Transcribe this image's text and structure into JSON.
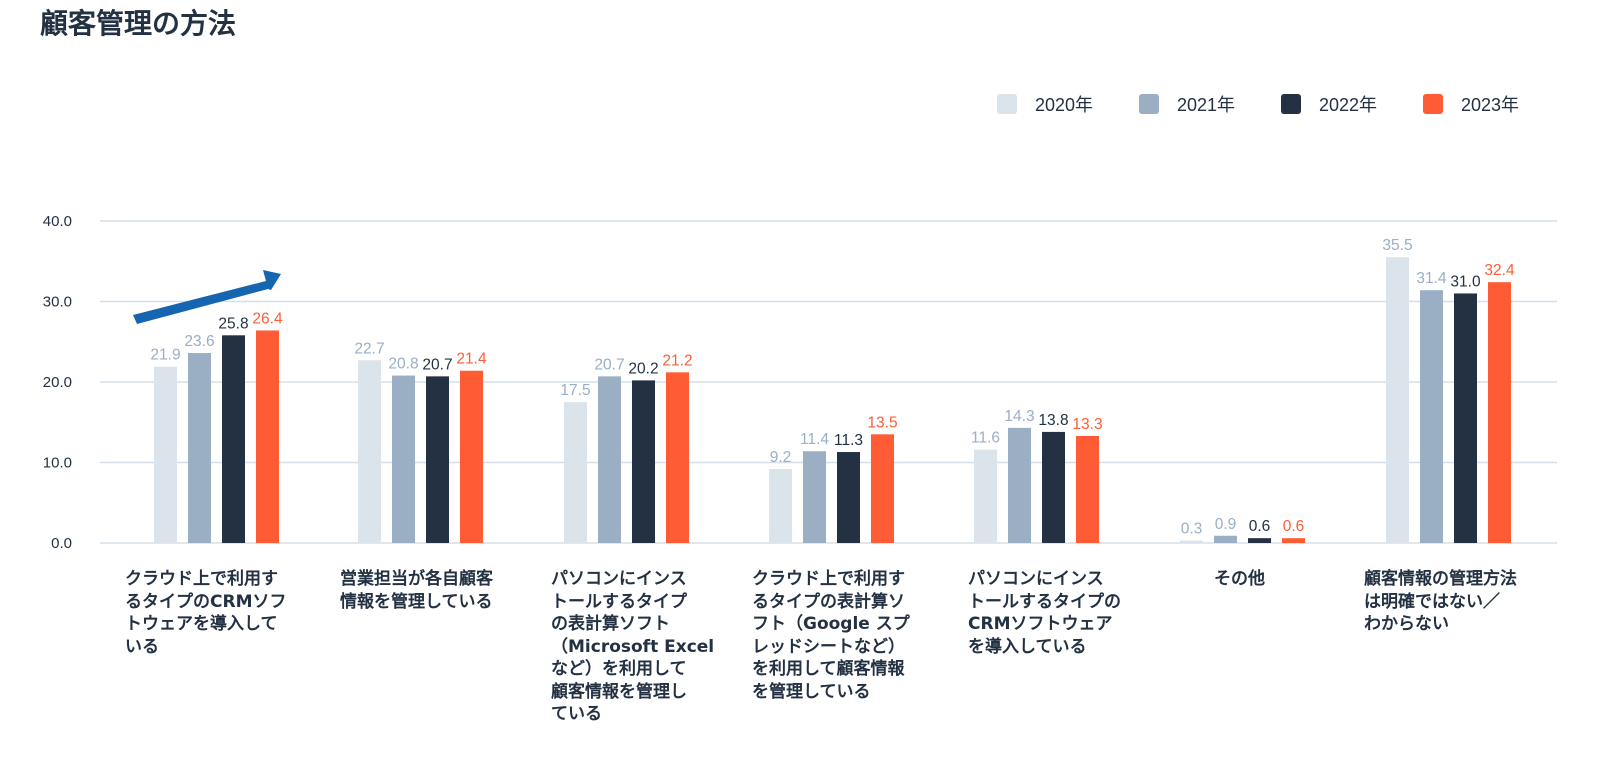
{
  "chart_data": {
    "type": "bar",
    "title": "顧客管理の方法",
    "xlabel": "",
    "ylabel": "",
    "ylim": [
      0,
      40
    ],
    "yticks": [
      "0.0",
      "10.0",
      "20.0",
      "30.0",
      "40.0"
    ],
    "ytick_values": [
      0,
      10,
      20,
      30,
      40
    ],
    "grid": true,
    "legend_position": "top-right",
    "categories": [
      "クラウド上で利用す\nるタイプのCRMソフ\nトウェアを導入して\nいる",
      "営業担当が各自顧客\n情報を管理している",
      "パソコンにインス\nトールするタイプ\nの表計算ソフト\n（Microsoft Excel\nなど）を利用して\n顧客情報を管理し\nている",
      "クラウド上で利用す\nるタイプの表計算ソ\nフト（Google スプ\nレッドシートなど）\nを利用して顧客情報\nを管理している",
      "パソコンにインス\nトールするタイプの\nCRMソフトウェア\nを導入している",
      "その他",
      "顧客情報の管理方法\nは明確ではない／\nわからない"
    ],
    "series": [
      {
        "name": "2020年",
        "color": "#dbe3eb",
        "label_color": "#9aaec4",
        "values": [
          21.9,
          22.7,
          17.5,
          9.2,
          11.6,
          0.3,
          35.5
        ],
        "labels": [
          "21.9",
          "22.7",
          "17.5",
          "9.2",
          "11.6",
          "0.3",
          "35.5"
        ]
      },
      {
        "name": "2021年",
        "color": "#9aaec4",
        "label_color": "#9aaec4",
        "values": [
          23.6,
          20.8,
          20.7,
          11.4,
          14.3,
          0.9,
          31.4
        ],
        "labels": [
          "23.6",
          "20.8",
          "20.7",
          "11.4",
          "14.3",
          "0.9",
          "31.4"
        ]
      },
      {
        "name": "2022年",
        "color": "#233142",
        "label_color": "#233142",
        "values": [
          25.8,
          20.7,
          20.2,
          11.3,
          13.8,
          0.6,
          31.0
        ],
        "labels": [
          "25.8",
          "20.7",
          "20.2",
          "11.3",
          "13.8",
          "0.6",
          "31.0"
        ]
      },
      {
        "name": "2023年",
        "color": "#ff5c35",
        "label_color": "#ff5c35",
        "values": [
          26.4,
          21.4,
          21.2,
          13.5,
          13.3,
          0.6,
          32.4
        ],
        "labels": [
          "26.4",
          "21.4",
          "21.2",
          "13.5",
          "13.3",
          "0.6",
          "32.4"
        ]
      }
    ],
    "annotations": [
      {
        "type": "arrow",
        "color": "#1565b0",
        "meaning": "increasing-trend",
        "category": "クラウド上で利用するタイプのCRMソフトウェアを導入している"
      }
    ]
  }
}
